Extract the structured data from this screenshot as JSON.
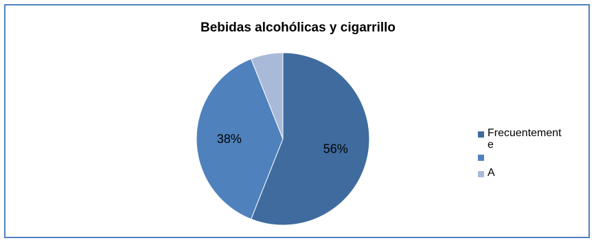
{
  "chart_data": {
    "type": "pie",
    "title": "Bebidas alcohólicas y cigarrillo",
    "series": [
      {
        "name": "",
        "slices": [
          {
            "label": "Frecuentemente",
            "value": 56,
            "value_label": "56%",
            "color": "#3f6b9f"
          },
          {
            "label": "",
            "value": 38,
            "value_label": "38%",
            "color": "#4f81bd"
          },
          {
            "label": "A",
            "value": 6,
            "value_label": "",
            "color": "#a9bad9"
          }
        ]
      }
    ],
    "legend": {
      "placement": "right",
      "entries": [
        {
          "text_line1": "Frecuentement",
          "text_line2": "e",
          "color": "#3f6b9f"
        },
        {
          "text_line1": "",
          "text_line2": "",
          "color": "#4f81bd"
        },
        {
          "text_line1": "A",
          "text_line2": "",
          "color": "#a9bad9"
        }
      ]
    },
    "colors": {
      "border": "#4f81bd",
      "slice_edge": "#ffffff"
    }
  }
}
